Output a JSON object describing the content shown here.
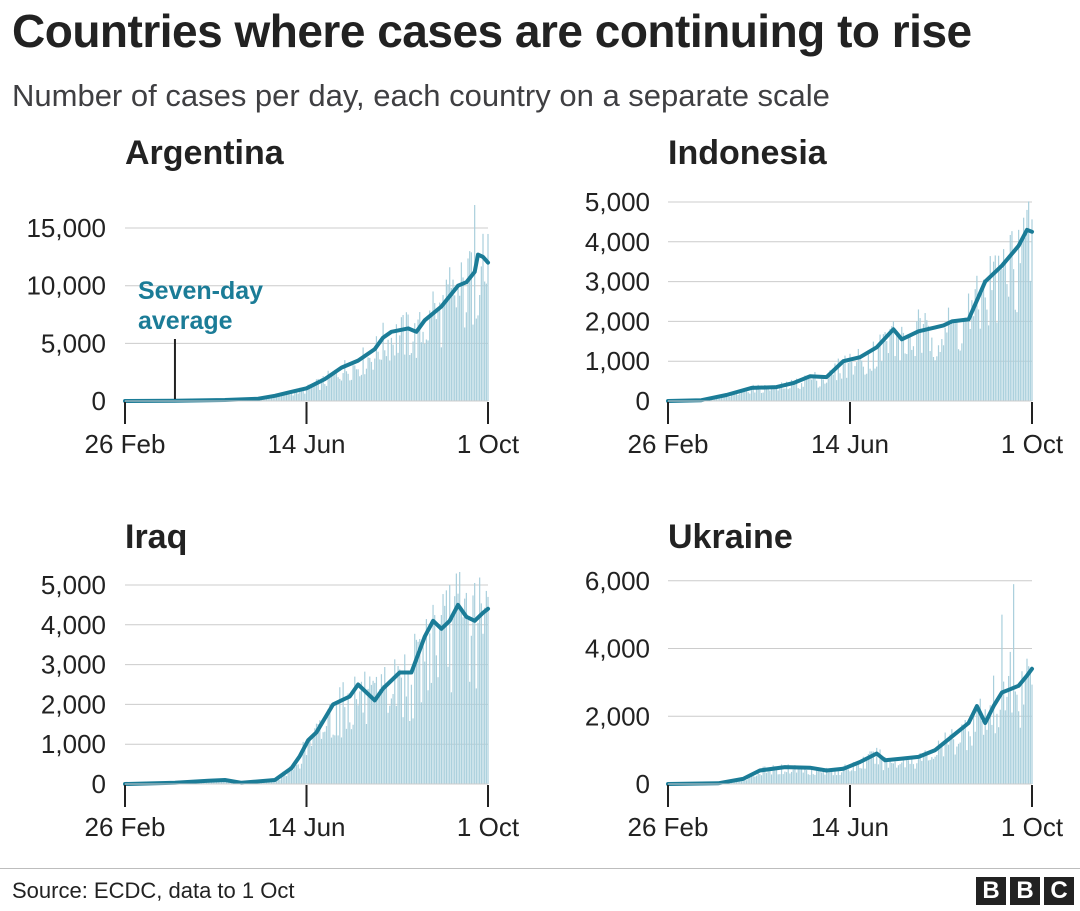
{
  "header": {
    "title": "Countries where cases are continuing to rise",
    "subtitle": "Number of cases per day, each country on a separate scale"
  },
  "footer": {
    "source": "Source: ECDC, data to 1 Oct",
    "logo_letters": [
      "B",
      "B",
      "C"
    ]
  },
  "colors": {
    "line": "#1b7c97",
    "bar": "#a9cfdc",
    "grid": "#cccccc",
    "axis": "#222222"
  },
  "chart_data": [
    {
      "type": "line",
      "title": "Argentina",
      "x_ticks": [
        "26 Feb",
        "14 Jun",
        "1 Oct"
      ],
      "x_tick_days": [
        0,
        109,
        218
      ],
      "y_ticks": [
        0,
        5000,
        10000,
        15000
      ],
      "y_tick_labels": [
        "0",
        "5,000",
        "10,000",
        "15,000"
      ],
      "ylim": [
        0,
        17000
      ],
      "annotation": {
        "lines": [
          "Seven-day",
          "average"
        ],
        "day": 30
      },
      "seven_day_average": [
        [
          0,
          0
        ],
        [
          30,
          30
        ],
        [
          60,
          90
        ],
        [
          80,
          200
        ],
        [
          90,
          450
        ],
        [
          100,
          800
        ],
        [
          109,
          1100
        ],
        [
          120,
          1900
        ],
        [
          130,
          2900
        ],
        [
          140,
          3500
        ],
        [
          150,
          4500
        ],
        [
          155,
          5500
        ],
        [
          160,
          6000
        ],
        [
          170,
          6300
        ],
        [
          175,
          6000
        ],
        [
          180,
          7000
        ],
        [
          190,
          8200
        ],
        [
          200,
          10000
        ],
        [
          205,
          10300
        ],
        [
          210,
          11200
        ],
        [
          212,
          12700
        ],
        [
          215,
          12500
        ],
        [
          218,
          12000
        ]
      ],
      "daily_peaks": [
        [
          170,
          7500
        ],
        [
          185,
          9500
        ],
        [
          195,
          11600
        ],
        [
          207,
          13000
        ],
        [
          210,
          17000
        ],
        [
          215,
          14500
        ]
      ]
    },
    {
      "type": "line",
      "title": "Indonesia",
      "x_ticks": [
        "26 Feb",
        "14 Jun",
        "1 Oct"
      ],
      "x_tick_days": [
        0,
        109,
        218
      ],
      "y_ticks": [
        0,
        1000,
        2000,
        3000,
        4000,
        5000
      ],
      "y_tick_labels": [
        "0",
        "1,000",
        "2,000",
        "3,000",
        "4,000",
        "5,000"
      ],
      "ylim": [
        0,
        5200
      ],
      "seven_day_average": [
        [
          0,
          0
        ],
        [
          20,
          20
        ],
        [
          35,
          150
        ],
        [
          50,
          330
        ],
        [
          65,
          350
        ],
        [
          75,
          450
        ],
        [
          85,
          620
        ],
        [
          95,
          600
        ],
        [
          105,
          1000
        ],
        [
          115,
          1100
        ],
        [
          125,
          1350
        ],
        [
          135,
          1800
        ],
        [
          140,
          1550
        ],
        [
          150,
          1750
        ],
        [
          160,
          1850
        ],
        [
          165,
          1900
        ],
        [
          170,
          2000
        ],
        [
          180,
          2050
        ],
        [
          190,
          3000
        ],
        [
          200,
          3400
        ],
        [
          210,
          3900
        ],
        [
          215,
          4300
        ],
        [
          218,
          4250
        ]
      ],
      "daily_peaks": [
        [
          135,
          2000
        ],
        [
          150,
          2300
        ],
        [
          180,
          2700
        ],
        [
          195,
          3500
        ],
        [
          210,
          4300
        ],
        [
          215,
          4800
        ]
      ]
    },
    {
      "type": "line",
      "title": "Iraq",
      "x_ticks": [
        "26 Feb",
        "14 Jun",
        "1 Oct"
      ],
      "x_tick_days": [
        0,
        109,
        218
      ],
      "y_ticks": [
        0,
        1000,
        2000,
        3000,
        4000,
        5000
      ],
      "y_tick_labels": [
        "0",
        "1,000",
        "2,000",
        "3,000",
        "4,000",
        "5,000"
      ],
      "ylim": [
        0,
        5200
      ],
      "seven_day_average": [
        [
          0,
          0
        ],
        [
          30,
          30
        ],
        [
          50,
          80
        ],
        [
          60,
          100
        ],
        [
          70,
          30
        ],
        [
          90,
          100
        ],
        [
          100,
          400
        ],
        [
          105,
          700
        ],
        [
          110,
          1100
        ],
        [
          115,
          1300
        ],
        [
          125,
          2000
        ],
        [
          135,
          2200
        ],
        [
          140,
          2500
        ],
        [
          150,
          2100
        ],
        [
          155,
          2400
        ],
        [
          165,
          2800
        ],
        [
          172,
          2800
        ],
        [
          180,
          3700
        ],
        [
          185,
          4100
        ],
        [
          190,
          3900
        ],
        [
          195,
          4100
        ],
        [
          200,
          4500
        ],
        [
          205,
          4200
        ],
        [
          210,
          4100
        ],
        [
          215,
          4300
        ],
        [
          218,
          4400
        ]
      ],
      "daily_peaks": [
        [
          185,
          4500
        ],
        [
          195,
          5000
        ],
        [
          205,
          4800
        ],
        [
          210,
          5050
        ],
        [
          218,
          4700
        ]
      ]
    },
    {
      "type": "line",
      "title": "Ukraine",
      "x_ticks": [
        "26 Feb",
        "14 Jun",
        "1 Oct"
      ],
      "x_tick_days": [
        0,
        109,
        218
      ],
      "y_ticks": [
        0,
        2000,
        4000,
        6000
      ],
      "y_tick_labels": [
        "0",
        "2,000",
        "4,000",
        "6,000"
      ],
      "ylim": [
        0,
        6200
      ],
      "seven_day_average": [
        [
          0,
          0
        ],
        [
          30,
          20
        ],
        [
          45,
          150
        ],
        [
          55,
          400
        ],
        [
          70,
          500
        ],
        [
          85,
          480
        ],
        [
          95,
          400
        ],
        [
          105,
          450
        ],
        [
          115,
          650
        ],
        [
          125,
          900
        ],
        [
          130,
          700
        ],
        [
          140,
          750
        ],
        [
          150,
          800
        ],
        [
          160,
          1000
        ],
        [
          170,
          1400
        ],
        [
          180,
          1800
        ],
        [
          185,
          2300
        ],
        [
          190,
          1800
        ],
        [
          195,
          2300
        ],
        [
          200,
          2700
        ],
        [
          205,
          2800
        ],
        [
          210,
          2900
        ],
        [
          215,
          3200
        ],
        [
          218,
          3400
        ]
      ],
      "daily_peaks": [
        [
          195,
          3200
        ],
        [
          200,
          5000
        ],
        [
          205,
          3900
        ],
        [
          207,
          5900
        ],
        [
          215,
          3700
        ]
      ]
    }
  ]
}
